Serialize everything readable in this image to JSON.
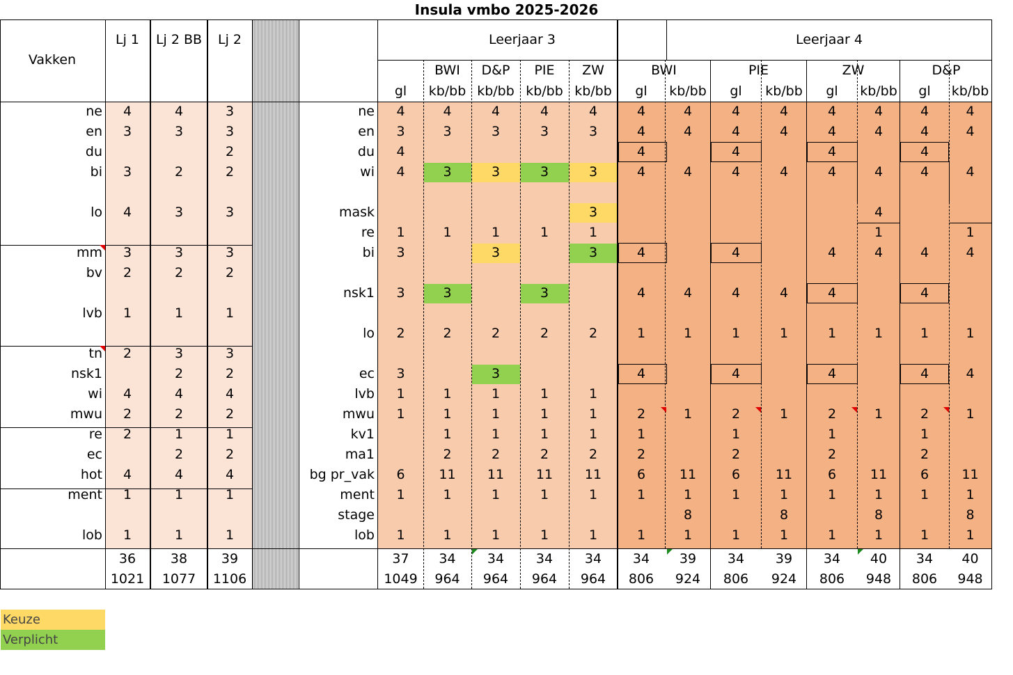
{
  "title": "Insula vmbo 2025-2026",
  "colors": {
    "light": "#fbe3d6",
    "mid": "#f8cbad",
    "dark": "#f4b183",
    "keuze": "#ffd966",
    "verplicht": "#92d050"
  },
  "lower": {
    "header": {
      "vakken": "Vakken",
      "cols": [
        "Lj 1",
        "Lj 2 BB",
        "Lj 2"
      ]
    },
    "rows": [
      {
        "vak": "ne",
        "v": [
          "4",
          "4",
          "3"
        ]
      },
      {
        "vak": "en",
        "v": [
          "3",
          "3",
          "3"
        ]
      },
      {
        "vak": "du",
        "v": [
          "",
          "",
          "2"
        ]
      },
      {
        "vak": "bi",
        "v": [
          "3",
          "2",
          "2"
        ]
      },
      {
        "vak": "",
        "v": [
          "",
          "",
          ""
        ]
      },
      {
        "vak": "lo",
        "v": [
          "4",
          "3",
          "3"
        ]
      },
      {
        "vak": "",
        "v": [
          "",
          "",
          ""
        ]
      },
      {
        "vak": "mm",
        "v": [
          "3",
          "3",
          "3"
        ]
      },
      {
        "vak": "bv",
        "v": [
          "2",
          "2",
          "2"
        ]
      },
      {
        "vak": "",
        "v": [
          "",
          "",
          ""
        ]
      },
      {
        "vak": "lvb",
        "v": [
          "1",
          "1",
          "1"
        ]
      },
      {
        "vak": "",
        "v": [
          "",
          "",
          ""
        ]
      },
      {
        "vak": "tn",
        "v": [
          "2",
          "3",
          "3"
        ]
      },
      {
        "vak": "nsk1",
        "v": [
          "",
          "2",
          "2"
        ]
      },
      {
        "vak": "wi",
        "v": [
          "4",
          "4",
          "4"
        ]
      },
      {
        "vak": "mwu",
        "v": [
          "2",
          "2",
          "2"
        ]
      },
      {
        "vak": "re",
        "v": [
          "2",
          "1",
          "1"
        ]
      },
      {
        "vak": "ec",
        "v": [
          "",
          "2",
          "2"
        ]
      },
      {
        "vak": "hot",
        "v": [
          "4",
          "4",
          "4"
        ]
      },
      {
        "vak": "ment",
        "v": [
          "1",
          "1",
          "1"
        ]
      },
      {
        "vak": "",
        "v": [
          "",
          "",
          ""
        ]
      },
      {
        "vak": "lob",
        "v": [
          "1",
          "1",
          "1"
        ]
      }
    ],
    "totals": [
      [
        "36",
        "38",
        "39"
      ],
      [
        "1021",
        "1077",
        "1106"
      ]
    ]
  },
  "upper": {
    "groups": [
      "Leerjaar 3",
      "Leerjaar 4"
    ],
    "sub3": [
      "",
      "BWI",
      "D&P",
      "PIE",
      "ZW"
    ],
    "sub4": [
      "BWI",
      "PIE",
      "ZW",
      "D&P"
    ],
    "levels": [
      "gl",
      "kb/bb",
      "kb/bb",
      "kb/bb",
      "kb/bb",
      "gl",
      "kb/bb",
      "gl",
      "kb/bb",
      "gl",
      "kb/bb",
      "gl",
      "kb/bb"
    ],
    "rows": [
      {
        "vak": "ne",
        "v": [
          "4",
          "4",
          "4",
          "4",
          "4",
          "4",
          "4",
          "4",
          "4",
          "4",
          "4",
          "4",
          "4"
        ]
      },
      {
        "vak": "en",
        "v": [
          "3",
          "3",
          "3",
          "3",
          "3",
          "4",
          "4",
          "4",
          "4",
          "4",
          "4",
          "4",
          "4"
        ]
      },
      {
        "vak": "du",
        "v": [
          "4",
          "",
          "",
          "",
          "",
          "4",
          "",
          "4",
          "",
          "4",
          "",
          "4",
          ""
        ]
      },
      {
        "vak": "wi",
        "v": [
          "4",
          "3",
          "3",
          "3",
          "3",
          "4",
          "4",
          "4",
          "4",
          "4",
          "4",
          "4",
          "4"
        ]
      },
      {
        "vak": "",
        "v": [
          "",
          "",
          "",
          "",
          "",
          "",
          "",
          "",
          "",
          "",
          "",
          "",
          ""
        ]
      },
      {
        "vak": "mask",
        "v": [
          "",
          "",
          "",
          "",
          "3",
          "",
          "",
          "",
          "",
          "",
          "4",
          "",
          ""
        ]
      },
      {
        "vak": "re",
        "v": [
          "1",
          "1",
          "1",
          "1",
          "1",
          "",
          "",
          "",
          "",
          "",
          "1",
          "",
          "1"
        ]
      },
      {
        "vak": "bi",
        "v": [
          "3",
          "",
          "3",
          "",
          "3",
          "4",
          "",
          "4",
          "",
          "4",
          "4",
          "4",
          "4"
        ]
      },
      {
        "vak": "",
        "v": [
          "",
          "",
          "",
          "",
          "",
          "",
          "",
          "",
          "",
          "",
          "",
          "",
          ""
        ]
      },
      {
        "vak": "nsk1",
        "v": [
          "3",
          "3",
          "",
          "3",
          "",
          "4",
          "4",
          "4",
          "4",
          "4",
          "",
          "4",
          ""
        ]
      },
      {
        "vak": "",
        "v": [
          "",
          "",
          "",
          "",
          "",
          "",
          "",
          "",
          "",
          "",
          "",
          "",
          ""
        ]
      },
      {
        "vak": "lo",
        "v": [
          "2",
          "2",
          "2",
          "2",
          "2",
          "1",
          "1",
          "1",
          "1",
          "1",
          "1",
          "1",
          "1"
        ]
      },
      {
        "vak": "",
        "v": [
          "",
          "",
          "",
          "",
          "",
          "",
          "",
          "",
          "",
          "",
          "",
          "",
          ""
        ]
      },
      {
        "vak": "ec",
        "v": [
          "3",
          "",
          "3",
          "",
          "",
          "4",
          "",
          "4",
          "",
          "4",
          "",
          "4",
          "4"
        ]
      },
      {
        "vak": "lvb",
        "v": [
          "1",
          "1",
          "1",
          "1",
          "1",
          "",
          "",
          "",
          "",
          "",
          "",
          "",
          ""
        ]
      },
      {
        "vak": "mwu",
        "v": [
          "1",
          "1",
          "1",
          "1",
          "1",
          "2",
          "1",
          "2",
          "1",
          "2",
          "1",
          "2",
          "1"
        ]
      },
      {
        "vak": "kv1",
        "v": [
          "",
          "1",
          "1",
          "1",
          "1",
          "1",
          "",
          "1",
          "",
          "1",
          "",
          "1",
          ""
        ]
      },
      {
        "vak": "ma1",
        "v": [
          "",
          "2",
          "2",
          "2",
          "2",
          "2",
          "",
          "2",
          "",
          "2",
          "",
          "2",
          ""
        ]
      },
      {
        "vak": "bg pr_vak",
        "v": [
          "6",
          "11",
          "11",
          "11",
          "11",
          "6",
          "11",
          "6",
          "11",
          "6",
          "11",
          "6",
          "11"
        ]
      },
      {
        "vak": "ment",
        "v": [
          "1",
          "1",
          "1",
          "1",
          "1",
          "1",
          "1",
          "1",
          "1",
          "1",
          "1",
          "1",
          "1"
        ]
      },
      {
        "vak": "stage",
        "v": [
          "",
          "",
          "",
          "",
          "",
          "",
          "8",
          "",
          "8",
          "",
          "8",
          "",
          "8"
        ]
      },
      {
        "vak": "lob",
        "v": [
          "1",
          "1",
          "1",
          "1",
          "1",
          "1",
          "1",
          "1",
          "1",
          "1",
          "1",
          "1",
          "1"
        ]
      }
    ],
    "totals": [
      [
        "37",
        "34",
        "34",
        "34",
        "34",
        "34",
        "39",
        "34",
        "39",
        "34",
        "40",
        "34",
        "40"
      ],
      [
        "1049",
        "964",
        "964",
        "964",
        "964",
        "806",
        "924",
        "806",
        "924",
        "806",
        "948",
        "806",
        "948"
      ]
    ]
  },
  "legend": {
    "keuze": "Keuze",
    "verplicht": "Verplicht"
  }
}
